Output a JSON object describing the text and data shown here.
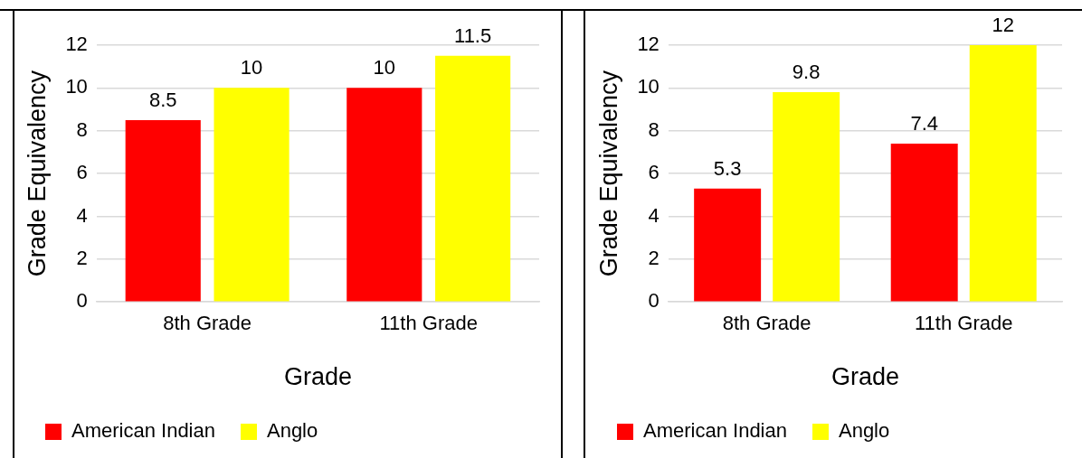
{
  "chart_data": [
    {
      "type": "bar",
      "categories": [
        "8th Grade",
        "11th Grade"
      ],
      "xlabel": "Grade",
      "ylabel": "Grade Equivalency",
      "ylim": [
        0,
        12
      ],
      "yticks": [
        0,
        2,
        4,
        6,
        8,
        10,
        12
      ],
      "grid": "y",
      "legend": "bottom",
      "data_labels": true,
      "series": [
        {
          "name": "American Indian",
          "color": "#ff0000",
          "values": [
            8.5,
            10
          ]
        },
        {
          "name": "Anglo",
          "color": "#ffff00",
          "values": [
            10,
            11.5
          ]
        }
      ]
    },
    {
      "type": "bar",
      "categories": [
        "8th Grade",
        "11th Grade"
      ],
      "xlabel": "Grade",
      "ylabel": "Grade Equivalency",
      "ylim": [
        0,
        12
      ],
      "yticks": [
        0,
        2,
        4,
        6,
        8,
        10,
        12
      ],
      "grid": "y",
      "legend": "bottom",
      "data_labels": true,
      "series": [
        {
          "name": "American Indian",
          "color": "#ff0000",
          "values": [
            5.3,
            7.4
          ]
        },
        {
          "name": "Anglo",
          "color": "#ffff00",
          "values": [
            9.8,
            12
          ]
        }
      ]
    }
  ]
}
